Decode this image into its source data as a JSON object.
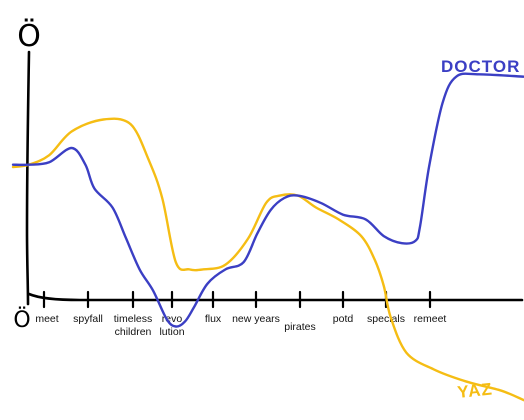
{
  "colors": {
    "doctor": "#3b3fc4",
    "yaz": "#f5bd14",
    "axis": "#000000"
  },
  "y_axis": {
    "top_face": "Ö",
    "bottom_face": "Ö"
  },
  "chart_data": {
    "type": "line",
    "title": "",
    "xlabel": "",
    "ylabel": "",
    "categories": [
      "meet",
      "spyfall",
      "timeless children",
      "revolution",
      "flux",
      "new years",
      "pirates",
      "potd",
      "specials",
      "remeet"
    ],
    "tick_labels": [
      [
        "meet"
      ],
      [
        "spyfall"
      ],
      [
        "timeless",
        "children"
      ],
      [
        "revo",
        "lution"
      ],
      [
        "flux"
      ],
      [
        "new years"
      ],
      [
        "pirates"
      ],
      [
        "potd"
      ],
      [
        "specials"
      ],
      [
        "remeet"
      ]
    ],
    "x_range": [
      0,
      11.3
    ],
    "ylim": [
      -4.5,
      10
    ],
    "grid": false,
    "series": [
      {
        "name": "DOCTOR",
        "color": "#3b3fc4",
        "label_position": "top-right",
        "points": [
          [
            0,
            5.6
          ],
          [
            0.35,
            5.6
          ],
          [
            0.8,
            5.7
          ],
          [
            1.3,
            6.3
          ],
          [
            1.6,
            5.6
          ],
          [
            1.8,
            4.6
          ],
          [
            2.2,
            3.8
          ],
          [
            2.5,
            2.5
          ],
          [
            2.8,
            1.2
          ],
          [
            3.1,
            0.3
          ],
          [
            3.4,
            -0.9
          ],
          [
            3.6,
            -1.2
          ],
          [
            3.8,
            -1.0
          ],
          [
            4.0,
            -0.4
          ],
          [
            4.3,
            0.6
          ],
          [
            4.7,
            1.2
          ],
          [
            5.1,
            1.5
          ],
          [
            5.4,
            2.7
          ],
          [
            5.7,
            3.7
          ],
          [
            6.0,
            4.2
          ],
          [
            6.3,
            4.3
          ],
          [
            6.8,
            4.0
          ],
          [
            7.3,
            3.5
          ],
          [
            7.8,
            3.3
          ],
          [
            8.2,
            2.6
          ],
          [
            8.6,
            2.3
          ],
          [
            8.9,
            2.4
          ],
          [
            9.0,
            3.0
          ],
          [
            9.2,
            5.5
          ],
          [
            9.5,
            8.2
          ],
          [
            9.8,
            9.3
          ],
          [
            10.3,
            9.4
          ],
          [
            11.3,
            9.3
          ]
        ]
      },
      {
        "name": "YAZ",
        "color": "#f5bd14",
        "label_position": "bottom-right",
        "points": [
          [
            0,
            5.5
          ],
          [
            0.35,
            5.6
          ],
          [
            0.8,
            6.0
          ],
          [
            1.3,
            7.0
          ],
          [
            2.0,
            7.5
          ],
          [
            2.6,
            7.3
          ],
          [
            3.0,
            5.8
          ],
          [
            3.3,
            4.2
          ],
          [
            3.6,
            1.5
          ],
          [
            3.9,
            1.2
          ],
          [
            4.2,
            1.2
          ],
          [
            4.7,
            1.4
          ],
          [
            5.2,
            2.5
          ],
          [
            5.6,
            4.0
          ],
          [
            5.9,
            4.3
          ],
          [
            6.3,
            4.3
          ],
          [
            6.7,
            3.8
          ],
          [
            7.2,
            3.3
          ],
          [
            7.7,
            2.6
          ],
          [
            8.0,
            1.6
          ],
          [
            8.2,
            0.5
          ],
          [
            8.35,
            -0.8
          ],
          [
            8.7,
            -2.3
          ],
          [
            9.3,
            -3.0
          ],
          [
            10.0,
            -3.5
          ],
          [
            10.8,
            -3.9
          ],
          [
            11.3,
            -4.3
          ]
        ]
      }
    ]
  }
}
